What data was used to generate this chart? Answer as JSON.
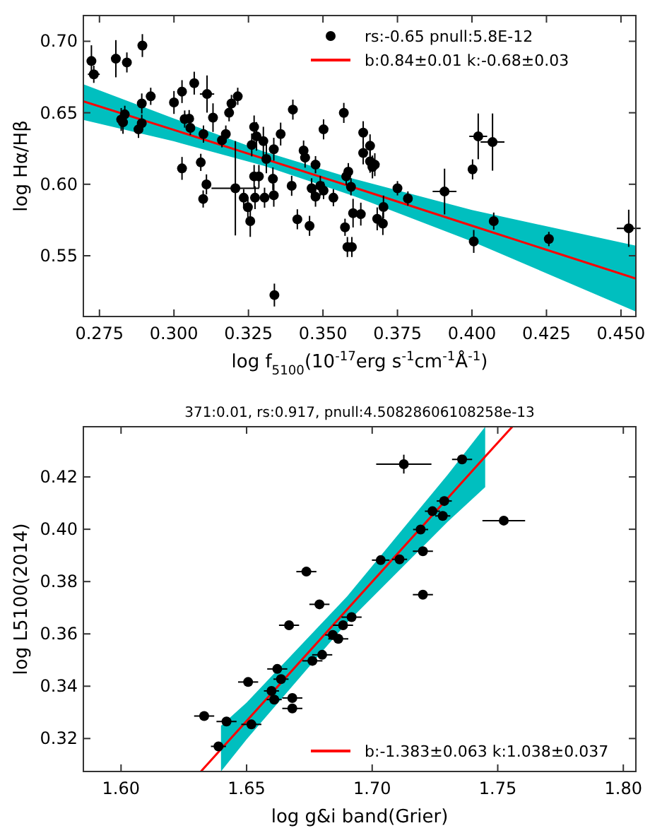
{
  "chart_data": [
    {
      "type": "scatter",
      "xlabel": "log f$_{5100}$(10$^{-17}$erg s$^{-1}$cm$^{-1}$Å$^{-1}$)",
      "ylabel": "log Hα/Hβ",
      "xlim": [
        0.2696,
        0.455
      ],
      "ylim": [
        0.5075,
        0.718
      ],
      "xticks": [
        {
          "value": 0.275,
          "label": "0.275"
        },
        {
          "value": 0.3,
          "label": "0.300"
        },
        {
          "value": 0.325,
          "label": "0.325"
        },
        {
          "value": 0.35,
          "label": "0.350"
        },
        {
          "value": 0.375,
          "label": "0.375"
        },
        {
          "value": 0.4,
          "label": "0.400"
        },
        {
          "value": 0.425,
          "label": "0.425"
        },
        {
          "value": 0.45,
          "label": "0.450"
        }
      ],
      "yticks": [
        {
          "value": 0.55,
          "label": "0.55"
        },
        {
          "value": 0.6,
          "label": "0.60"
        },
        {
          "value": 0.65,
          "label": "0.65"
        },
        {
          "value": 0.7,
          "label": "0.70"
        }
      ],
      "grid": false,
      "legend": "top right",
      "series": [
        {
          "name": "rs:-0.65 pnull:5.8E-12",
          "color": "#000000",
          "marker": "circle",
          "x": [
            0.2723,
            0.2731,
            0.2805,
            0.2842,
            0.2894,
            0.2823,
            0.2829,
            0.2835,
            0.2881,
            0.2892,
            0.2892,
            0.2922,
            0.3,
            0.3027,
            0.3068,
            0.3111,
            0.3027,
            0.3036,
            0.3051,
            0.3055,
            0.309,
            0.3099,
            0.3098,
            0.3109,
            0.3131,
            0.3161,
            0.3174,
            0.3185,
            0.3193,
            0.3214,
            0.3206,
            0.3234,
            0.3248,
            0.3256,
            0.3261,
            0.3269,
            0.3277,
            0.3269,
            0.3272,
            0.3285,
            0.33,
            0.331,
            0.3304,
            0.3332,
            0.3335,
            0.3335,
            0.3358,
            0.3337,
            0.3399,
            0.3395,
            0.3414,
            0.3435,
            0.344,
            0.3455,
            0.3462,
            0.3475,
            0.3475,
            0.3491,
            0.3502,
            0.3502,
            0.3535,
            0.357,
            0.3574,
            0.3578,
            0.3585,
            0.3582,
            0.3597,
            0.3594,
            0.3601,
            0.3635,
            0.3635,
            0.3658,
            0.3666,
            0.3658,
            0.3674,
            0.3627,
            0.3682,
            0.3701,
            0.3703,
            0.375,
            0.3785,
            0.3908,
            0.4002,
            0.4021,
            0.4069,
            0.4006,
            0.4073,
            0.4258,
            0.4526
          ],
          "values": [
            0.6862,
            0.6769,
            0.6878,
            0.6852,
            0.697,
            0.6453,
            0.6433,
            0.6489,
            0.6384,
            0.6427,
            0.6565,
            0.6615,
            0.6572,
            0.6648,
            0.6707,
            0.6631,
            0.6111,
            0.6456,
            0.6459,
            0.6394,
            0.6153,
            0.6351,
            0.5897,
            0.5999,
            0.6466,
            0.6308,
            0.6351,
            0.65,
            0.6565,
            0.6615,
            0.5972,
            0.5906,
            0.584,
            0.5742,
            0.6275,
            0.6401,
            0.6335,
            0.6055,
            0.5906,
            0.6055,
            0.6302,
            0.6177,
            0.5906,
            0.6038,
            0.6245,
            0.5923,
            0.6351,
            0.5225,
            0.6522,
            0.5989,
            0.5755,
            0.6236,
            0.6186,
            0.5709,
            0.5972,
            0.6137,
            0.5913,
            0.5989,
            0.5956,
            0.6384,
            0.5906,
            0.6499,
            0.5699,
            0.6055,
            0.6088,
            0.5561,
            0.5561,
            0.5982,
            0.5798,
            0.6361,
            0.6219,
            0.6269,
            0.6121,
            0.616,
            0.6137,
            0.5791,
            0.5758,
            0.5725,
            0.5841,
            0.5972,
            0.59,
            0.5949,
            0.6104,
            0.6335,
            0.6295,
            0.56,
            0.5742,
            0.5617,
            0.5692
          ],
          "errors": [
            0.011,
            0.006,
            0.013,
            0.007,
            0.008,
            0.008,
            0.008,
            0.006,
            0.006,
            0.006,
            0.007,
            0.006,
            0.008,
            0.008,
            0.008,
            0.013,
            0.008,
            0.006,
            0.006,
            0.005,
            0.006,
            0.006,
            0.006,
            0.007,
            0.01,
            0.005,
            0.006,
            0.006,
            0.006,
            0.006,
            0.033,
            0.006,
            0.007,
            0.011,
            0.008,
            0.008,
            0.01,
            0.008,
            0.008,
            0.008,
            0.01,
            0.01,
            0.007,
            0.008,
            0.008,
            0.008,
            0.008,
            0.008,
            0.007,
            0.007,
            0.007,
            0.007,
            0.007,
            0.007,
            0.007,
            0.006,
            0.007,
            0.007,
            0.006,
            0.007,
            0.006,
            0.007,
            0.006,
            0.006,
            0.006,
            0.007,
            0.007,
            0.006,
            0.01,
            0.008,
            0.008,
            0.008,
            0.008,
            0.008,
            0.008,
            0.008,
            0.008,
            0.008,
            0.008,
            0.005,
            0.005,
            0.016,
            0.007,
            0.016,
            0.02,
            0.008,
            0.006,
            0.005,
            0.013
          ],
          "xerrors": [
            null,
            0.002,
            null,
            null,
            null,
            null,
            null,
            null,
            null,
            null,
            null,
            null,
            null,
            null,
            null,
            0.0024,
            null,
            null,
            null,
            null,
            null,
            null,
            null,
            null,
            null,
            null,
            null,
            null,
            null,
            null,
            0.008,
            null,
            null,
            null,
            null,
            null,
            null,
            null,
            null,
            null,
            null,
            null,
            null,
            null,
            null,
            null,
            null,
            null,
            null,
            null,
            null,
            null,
            null,
            null,
            null,
            null,
            null,
            null,
            null,
            null,
            null,
            null,
            null,
            null,
            null,
            null,
            null,
            null,
            null,
            null,
            null,
            null,
            null,
            null,
            null,
            null,
            null,
            null,
            null,
            null,
            null,
            0.004,
            null,
            0.003,
            0.004,
            null,
            null,
            null,
            0.004
          ]
        },
        {
          "type": "line",
          "name": "b:0.84±0.01 k:-0.68±0.03",
          "color": "#ff0000",
          "x": [
            0.2696,
            0.3,
            0.33,
            0.36,
            0.4,
            0.455
          ],
          "values": [
            0.658,
            0.638,
            0.618,
            0.598,
            0.571,
            0.534
          ],
          "lower": [
            0.645,
            0.63,
            0.613,
            0.592,
            0.56,
            0.511
          ],
          "upper": [
            0.67,
            0.646,
            0.623,
            0.604,
            0.582,
            0.557
          ]
        }
      ]
    },
    {
      "type": "scatter",
      "title": "371:0.01, rs:0.917, pnull:4.50828606108258e-13",
      "xlabel": "log g&i band(Grier)",
      "ylabel": "log L5100(2014)",
      "xlim": [
        1.585,
        1.805
      ],
      "ylim": [
        0.3074,
        0.4392
      ],
      "xticks": [
        {
          "value": 1.6,
          "label": "1.60"
        },
        {
          "value": 1.65,
          "label": "1.65"
        },
        {
          "value": 1.7,
          "label": "1.70"
        },
        {
          "value": 1.75,
          "label": "1.75"
        },
        {
          "value": 1.8,
          "label": "1.80"
        }
      ],
      "yticks": [
        0.32,
        0.34,
        0.36,
        0.38,
        {
          "value": 0.4,
          "label": "0.40"
        },
        0.42
      ],
      "grid": false,
      "legend": "bottom right",
      "series": [
        {
          "color": "#000000",
          "marker": "circle",
          "x": [
            1.6331,
            1.642,
            1.6388,
            1.6506,
            1.6519,
            1.6599,
            1.661,
            1.6622,
            1.6637,
            1.6682,
            1.6682,
            1.6669,
            1.6738,
            1.6762,
            1.679,
            1.6801,
            1.6843,
            1.6865,
            1.6884,
            1.6918,
            1.7034,
            1.7109,
            1.7126,
            1.7193,
            1.7202,
            1.7202,
            1.724,
            1.7281,
            1.7287,
            1.7358,
            1.7524
          ],
          "values": [
            0.3286,
            0.3265,
            0.317,
            0.3416,
            0.3254,
            0.3382,
            0.3349,
            0.3466,
            0.3427,
            0.3355,
            0.3315,
            0.3633,
            0.3838,
            0.3497,
            0.3713,
            0.352,
            0.3596,
            0.3581,
            0.3633,
            0.3664,
            0.3882,
            0.3885,
            0.4249,
            0.3999,
            0.3916,
            0.375,
            0.4069,
            0.4051,
            0.4108,
            0.4267,
            0.4033
          ],
          "errors": [
            null,
            null,
            null,
            null,
            null,
            null,
            null,
            null,
            null,
            null,
            null,
            null,
            null,
            null,
            null,
            null,
            null,
            null,
            null,
            null,
            null,
            null,
            0.0036,
            null,
            null,
            null,
            null,
            null,
            null,
            null,
            null
          ],
          "xerrors": [
            0.004,
            0.004,
            0.003,
            0.004,
            0.004,
            0.003,
            0.003,
            0.004,
            0.003,
            0.004,
            0.004,
            0.004,
            0.004,
            0.004,
            0.004,
            0.004,
            0.003,
            0.004,
            0.004,
            0.004,
            0.0035,
            0.003,
            0.011,
            0.003,
            0.004,
            0.004,
            0.003,
            0.003,
            0.003,
            0.004,
            0.0085
          ]
        },
        {
          "type": "line",
          "name": "b:-1.383±0.063 k:1.038±0.037",
          "color": "#ff0000",
          "x": [
            1.6318,
            1.6398,
            1.65,
            1.69,
            1.73,
            1.745,
            1.7558
          ],
          "values": [
            0.3074,
            0.3159,
            0.3267,
            0.3693,
            0.4118,
            0.4278,
            0.4392
          ],
          "lower": [
            null,
            0.3074,
            0.3197,
            0.3643,
            0.4028,
            0.4161,
            null
          ],
          "upper": [
            null,
            0.3249,
            0.3337,
            0.3743,
            0.4208,
            0.4392,
            null
          ]
        }
      ]
    }
  ]
}
